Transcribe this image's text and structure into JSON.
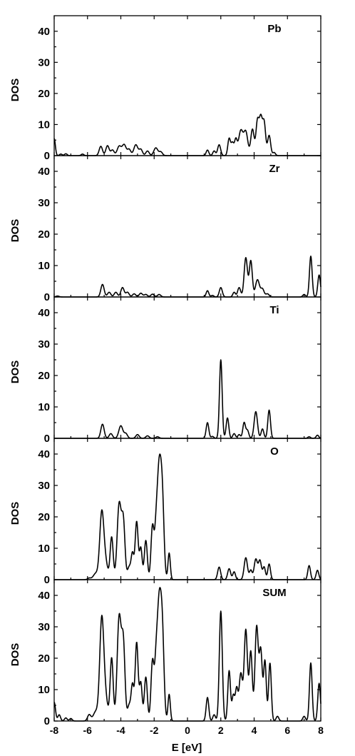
{
  "chart_data": {
    "type": "line",
    "title": "",
    "xlabel": "E [eV]",
    "ylabel": "DOS",
    "xlim": [
      -8,
      8
    ],
    "ylim": [
      0,
      45
    ],
    "xticks": [
      -8,
      -6,
      -4,
      -2,
      0,
      2,
      4,
      6,
      8
    ],
    "yticks": [
      0,
      10,
      20,
      30,
      40
    ],
    "grid": false,
    "legend": "none",
    "line_color": "#000000",
    "panels": [
      {
        "label": "Pb",
        "peaks": [
          [
            -8.0,
            5.5,
            0.07
          ],
          [
            -7.6,
            0.5,
            0.08
          ],
          [
            -7.3,
            0.6,
            0.08
          ],
          [
            -6.3,
            0.5,
            0.08
          ],
          [
            -5.2,
            3.0,
            0.1
          ],
          [
            -4.8,
            3.2,
            0.1
          ],
          [
            -4.5,
            1.8,
            0.1
          ],
          [
            -4.1,
            3.0,
            0.12
          ],
          [
            -3.8,
            3.5,
            0.12
          ],
          [
            -3.5,
            2.0,
            0.1
          ],
          [
            -3.1,
            3.5,
            0.12
          ],
          [
            -2.8,
            2.0,
            0.1
          ],
          [
            -2.4,
            1.5,
            0.1
          ],
          [
            -1.9,
            2.5,
            0.12
          ],
          [
            -1.6,
            1.2,
            0.1
          ],
          [
            1.2,
            1.8,
            0.08
          ],
          [
            1.6,
            1.5,
            0.08
          ],
          [
            1.9,
            3.5,
            0.09
          ],
          [
            2.5,
            5.5,
            0.08
          ],
          [
            2.7,
            4.0,
            0.08
          ],
          [
            2.9,
            5.0,
            0.08
          ],
          [
            3.2,
            8.0,
            0.13
          ],
          [
            3.5,
            7.5,
            0.12
          ],
          [
            3.9,
            8.5,
            0.1
          ],
          [
            4.2,
            11.0,
            0.09
          ],
          [
            4.4,
            11.5,
            0.09
          ],
          [
            4.6,
            10.5,
            0.09
          ],
          [
            4.9,
            6.5,
            0.09
          ],
          [
            5.2,
            1.0,
            0.08
          ]
        ]
      },
      {
        "label": "Zr",
        "peaks": [
          [
            -7.8,
            0.3,
            0.1
          ],
          [
            -5.1,
            4.0,
            0.1
          ],
          [
            -4.7,
            1.5,
            0.1
          ],
          [
            -4.3,
            1.5,
            0.1
          ],
          [
            -3.9,
            3.0,
            0.1
          ],
          [
            -3.6,
            1.5,
            0.1
          ],
          [
            -3.2,
            1.0,
            0.1
          ],
          [
            -2.8,
            1.2,
            0.1
          ],
          [
            -2.5,
            0.8,
            0.1
          ],
          [
            -2.1,
            0.9,
            0.1
          ],
          [
            -1.7,
            0.8,
            0.1
          ],
          [
            1.2,
            2.0,
            0.08
          ],
          [
            1.5,
            0.5,
            0.08
          ],
          [
            2.0,
            3.0,
            0.09
          ],
          [
            2.8,
            1.5,
            0.08
          ],
          [
            3.1,
            3.0,
            0.09
          ],
          [
            3.5,
            12.5,
            0.1
          ],
          [
            3.8,
            11.5,
            0.09
          ],
          [
            4.2,
            5.5,
            0.12
          ],
          [
            4.5,
            2.5,
            0.1
          ],
          [
            4.8,
            1.0,
            0.1
          ],
          [
            7.0,
            0.8,
            0.08
          ],
          [
            7.4,
            13.0,
            0.08
          ],
          [
            7.9,
            7.0,
            0.08
          ]
        ]
      },
      {
        "label": "Ti",
        "peaks": [
          [
            -5.1,
            4.5,
            0.1
          ],
          [
            -4.6,
            1.5,
            0.1
          ],
          [
            -4.0,
            4.0,
            0.12
          ],
          [
            -3.7,
            1.5,
            0.1
          ],
          [
            -3.0,
            1.2,
            0.1
          ],
          [
            -2.4,
            0.8,
            0.1
          ],
          [
            -1.8,
            0.5,
            0.1
          ],
          [
            1.2,
            5.0,
            0.08
          ],
          [
            1.5,
            0.6,
            0.08
          ],
          [
            2.0,
            25.0,
            0.08
          ],
          [
            2.4,
            6.5,
            0.08
          ],
          [
            2.8,
            1.5,
            0.08
          ],
          [
            3.1,
            1.2,
            0.08
          ],
          [
            3.4,
            5.0,
            0.08
          ],
          [
            3.6,
            2.5,
            0.08
          ],
          [
            4.1,
            8.5,
            0.1
          ],
          [
            4.5,
            3.0,
            0.08
          ],
          [
            4.9,
            9.0,
            0.08
          ],
          [
            7.3,
            0.5,
            0.08
          ],
          [
            7.8,
            1.0,
            0.08
          ]
        ]
      },
      {
        "label": "O",
        "peaks": [
          [
            -5.9,
            0.5,
            0.1
          ],
          [
            -5.5,
            2.0,
            0.15
          ],
          [
            -5.15,
            19.5,
            0.12
          ],
          [
            -4.95,
            6.0,
            0.15
          ],
          [
            -4.55,
            13.5,
            0.09
          ],
          [
            -4.1,
            24.0,
            0.12
          ],
          [
            -3.85,
            18.0,
            0.1
          ],
          [
            -3.5,
            4.0,
            0.1
          ],
          [
            -3.3,
            8.0,
            0.08
          ],
          [
            -3.05,
            18.5,
            0.09
          ],
          [
            -2.8,
            10.0,
            0.08
          ],
          [
            -2.5,
            12.5,
            0.09
          ],
          [
            -2.1,
            17.0,
            0.09
          ],
          [
            -1.9,
            9.0,
            0.08
          ],
          [
            -1.7,
            36.0,
            0.13
          ],
          [
            -1.5,
            20.0,
            0.1
          ],
          [
            -1.1,
            8.5,
            0.07
          ],
          [
            1.9,
            4.0,
            0.09
          ],
          [
            2.5,
            3.5,
            0.09
          ],
          [
            2.8,
            2.5,
            0.08
          ],
          [
            3.5,
            7.0,
            0.1
          ],
          [
            3.8,
            3.0,
            0.08
          ],
          [
            4.1,
            6.5,
            0.1
          ],
          [
            4.35,
            6.0,
            0.09
          ],
          [
            4.6,
            4.0,
            0.08
          ],
          [
            4.9,
            5.0,
            0.08
          ],
          [
            7.3,
            4.5,
            0.08
          ],
          [
            7.8,
            3.0,
            0.08
          ]
        ]
      },
      {
        "label": "SUM",
        "peaks": [
          [
            -8.0,
            6.0,
            0.08
          ],
          [
            -7.7,
            2.0,
            0.08
          ],
          [
            -7.3,
            1.0,
            0.08
          ],
          [
            -7.0,
            0.8,
            0.08
          ],
          [
            -5.9,
            2.0,
            0.1
          ],
          [
            -5.5,
            3.0,
            0.15
          ],
          [
            -5.15,
            30.0,
            0.12
          ],
          [
            -4.95,
            8.0,
            0.15
          ],
          [
            -4.55,
            20.0,
            0.09
          ],
          [
            -4.1,
            33.0,
            0.12
          ],
          [
            -3.85,
            24.0,
            0.1
          ],
          [
            -3.5,
            5.0,
            0.1
          ],
          [
            -3.3,
            11.0,
            0.08
          ],
          [
            -3.05,
            25.0,
            0.09
          ],
          [
            -2.8,
            12.0,
            0.08
          ],
          [
            -2.5,
            14.0,
            0.09
          ],
          [
            -2.1,
            19.0,
            0.09
          ],
          [
            -1.9,
            11.0,
            0.08
          ],
          [
            -1.7,
            38.0,
            0.13
          ],
          [
            -1.5,
            22.0,
            0.1
          ],
          [
            -1.1,
            8.5,
            0.07
          ],
          [
            1.2,
            7.5,
            0.08
          ],
          [
            1.6,
            2.0,
            0.08
          ],
          [
            2.0,
            35.0,
            0.09
          ],
          [
            2.5,
            16.0,
            0.08
          ],
          [
            2.75,
            8.0,
            0.08
          ],
          [
            2.95,
            10.0,
            0.08
          ],
          [
            3.2,
            15.0,
            0.1
          ],
          [
            3.5,
            29.0,
            0.1
          ],
          [
            3.8,
            22.0,
            0.09
          ],
          [
            4.15,
            30.0,
            0.1
          ],
          [
            4.4,
            22.0,
            0.09
          ],
          [
            4.65,
            19.0,
            0.08
          ],
          [
            4.95,
            18.5,
            0.08
          ],
          [
            5.4,
            1.5,
            0.08
          ],
          [
            7.0,
            1.5,
            0.08
          ],
          [
            7.4,
            18.5,
            0.08
          ],
          [
            7.9,
            12.0,
            0.08
          ]
        ]
      }
    ]
  }
}
